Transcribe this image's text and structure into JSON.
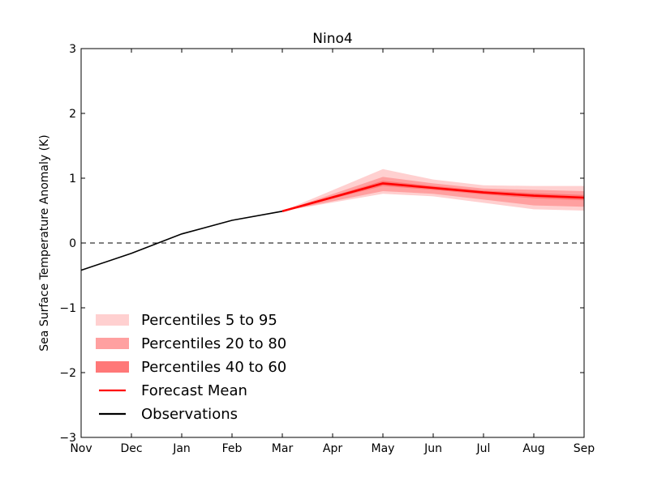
{
  "chart_data": {
    "type": "line",
    "title": "Nino4",
    "xlabel": "",
    "ylabel": "Sea Surface Temperature Anomaly (K)",
    "categories": [
      "Nov",
      "Dec",
      "Jan",
      "Feb",
      "Mar",
      "Apr",
      "May",
      "Jun",
      "Jul",
      "Aug",
      "Sep"
    ],
    "ylim": [
      -3,
      3
    ],
    "yticks": [
      3,
      2,
      1,
      0,
      -1,
      -2,
      -3
    ],
    "ytick_labels": [
      "3",
      "2",
      "1",
      "0",
      "−1",
      "−2",
      "−3"
    ],
    "zero_line": {
      "value": 0,
      "style": "dashed",
      "color": "#000000"
    },
    "observations": {
      "name": "Observations",
      "color": "#000000",
      "x_index": [
        0,
        1,
        2,
        3,
        4
      ],
      "values": [
        -0.42,
        -0.16,
        0.14,
        0.35,
        0.49
      ]
    },
    "forecast_mean": {
      "name": "Forecast Mean",
      "color": "#ff0000",
      "x_index": [
        4,
        6,
        7,
        8,
        9,
        10
      ],
      "values": [
        0.49,
        0.92,
        0.85,
        0.78,
        0.73,
        0.7
      ]
    },
    "bands": [
      {
        "name": "Percentiles 5 to 95",
        "color": "#ffd0d0",
        "x_index": [
          4,
          6,
          7,
          8,
          9,
          10
        ],
        "lower": [
          0.49,
          0.76,
          0.72,
          0.62,
          0.52,
          0.5
        ],
        "upper": [
          0.49,
          1.14,
          0.98,
          0.89,
          0.88,
          0.88
        ]
      },
      {
        "name": "Percentiles 20 to 80",
        "color": "#ffa0a0",
        "x_index": [
          4,
          6,
          7,
          8,
          9,
          10
        ],
        "lower": [
          0.49,
          0.8,
          0.76,
          0.67,
          0.58,
          0.56
        ],
        "upper": [
          0.49,
          1.02,
          0.92,
          0.84,
          0.82,
          0.8
        ]
      },
      {
        "name": "Percentiles 40 to 60",
        "color": "#ff7878",
        "x_index": [
          4,
          6,
          7,
          8,
          9,
          10
        ],
        "lower": [
          0.49,
          0.88,
          0.82,
          0.75,
          0.69,
          0.66
        ],
        "upper": [
          0.49,
          0.96,
          0.88,
          0.81,
          0.77,
          0.74
        ]
      }
    ],
    "legend": {
      "placement": "lower-left",
      "entries": [
        {
          "label": "Percentiles 5 to 95",
          "kind": "patch",
          "color": "#ffd0d0"
        },
        {
          "label": "Percentiles 20 to 80",
          "kind": "patch",
          "color": "#ffa0a0"
        },
        {
          "label": "Percentiles 40 to 60",
          "kind": "patch",
          "color": "#ff7878"
        },
        {
          "label": "Forecast Mean",
          "kind": "line",
          "color": "#ff0000"
        },
        {
          "label": "Observations",
          "kind": "line",
          "color": "#000000"
        }
      ]
    }
  }
}
